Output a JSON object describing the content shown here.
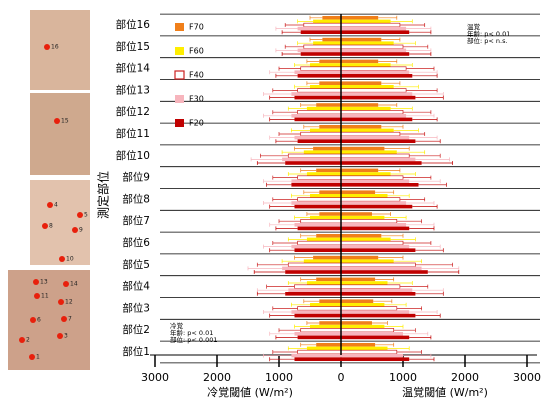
{
  "chart_data": {
    "type": "diverging-bar",
    "y_label": "測定部位",
    "x_label_left": "冷覚閾値 (W/m²)",
    "x_label_right": "温覚閾値 (W/m²)",
    "categories": [
      "部位1",
      "部位2",
      "部位3",
      "部位4",
      "部位5",
      "部位6",
      "部位7",
      "部位8",
      "部位9",
      "部位10",
      "部位11",
      "部位12",
      "部位13",
      "部位14",
      "部位15",
      "部位16"
    ],
    "series": [
      {
        "name": "F70",
        "color": "#f07f1a",
        "hollow": false,
        "values": [
          550,
          500,
          520,
          550,
          600,
          650,
          500,
          550,
          600,
          700,
          650,
          600,
          650,
          600,
          650,
          600
        ],
        "warm_err": [
          300,
          250,
          300,
          300,
          400,
          350,
          300,
          300,
          350,
          400,
          350,
          300,
          300,
          300,
          300,
          300
        ],
        "cold": [
          -400,
          -350,
          -350,
          -400,
          -450,
          -400,
          -350,
          -350,
          -400,
          -450,
          -350,
          -400,
          -350,
          -350,
          -300,
          -300
        ],
        "cold_err": [
          250,
          200,
          250,
          250,
          300,
          250,
          200,
          250,
          250,
          300,
          250,
          250,
          200,
          200,
          200,
          200
        ]
      },
      {
        "name": "F60",
        "color": "#ffee00",
        "hollow": false,
        "values": [
          750,
          700,
          700,
          750,
          850,
          800,
          700,
          750,
          800,
          900,
          850,
          800,
          850,
          800,
          850,
          800
        ],
        "warm_err": [
          350,
          300,
          350,
          400,
          450,
          400,
          350,
          350,
          400,
          450,
          400,
          350,
          400,
          350,
          350,
          350
        ],
        "cold": [
          -550,
          -500,
          -500,
          -550,
          -600,
          -550,
          -500,
          -500,
          -550,
          -600,
          -500,
          -550,
          -500,
          -500,
          -450,
          -450
        ],
        "cold_err": [
          300,
          250,
          300,
          300,
          350,
          300,
          250,
          300,
          300,
          350,
          300,
          300,
          250,
          250,
          250,
          250
        ]
      },
      {
        "name": "F40",
        "color": "#cc2222",
        "hollow": true,
        "values": [
          900,
          850,
          900,
          950,
          1200,
          1000,
          900,
          950,
          1000,
          1100,
          950,
          1000,
          1050,
          1050,
          1000,
          950
        ],
        "warm_err": [
          400,
          350,
          400,
          450,
          600,
          450,
          400,
          400,
          450,
          500,
          400,
          450,
          500,
          450,
          400,
          400
        ],
        "cold": [
          -700,
          -650,
          -700,
          -750,
          -850,
          -700,
          -650,
          -700,
          -700,
          -850,
          -650,
          -700,
          -700,
          -650,
          -600,
          -600
        ],
        "cold_err": [
          400,
          350,
          400,
          450,
          500,
          400,
          350,
          400,
          400,
          450,
          350,
          400,
          400,
          350,
          300,
          300
        ]
      },
      {
        "name": "F30",
        "color": "#f7b5bd",
        "hollow": false,
        "values": [
          1000,
          1000,
          1100,
          1150,
          1300,
          1100,
          1050,
          1050,
          1100,
          1200,
          1100,
          1050,
          1150,
          1100,
          1050,
          1050
        ],
        "warm_err": [
          450,
          400,
          450,
          500,
          600,
          500,
          450,
          450,
          500,
          550,
          450,
          450,
          500,
          450,
          400,
          400
        ],
        "cold": [
          -800,
          -750,
          -800,
          -850,
          -950,
          -800,
          -750,
          -800,
          -800,
          -950,
          -750,
          -800,
          -800,
          -750,
          -700,
          -700
        ],
        "cold_err": [
          450,
          400,
          450,
          500,
          550,
          450,
          400,
          450,
          450,
          500,
          400,
          450,
          450,
          400,
          350,
          350
        ]
      },
      {
        "name": "F20",
        "color": "#c00000",
        "hollow": false,
        "values": [
          1100,
          1100,
          1200,
          1200,
          1400,
          1200,
          1100,
          1150,
          1250,
          1300,
          1200,
          1150,
          1200,
          1150,
          1100,
          1100
        ],
        "warm_err": [
          400,
          350,
          400,
          450,
          500,
          450,
          400,
          400,
          450,
          500,
          400,
          400,
          450,
          400,
          350,
          350
        ],
        "cold": [
          -750,
          -700,
          -750,
          -900,
          -900,
          -750,
          -700,
          -750,
          -800,
          -900,
          -700,
          -750,
          -750,
          -700,
          -650,
          -650
        ],
        "cold_err": [
          400,
          350,
          400,
          450,
          500,
          400,
          350,
          400,
          400,
          450,
          350,
          400,
          400,
          350,
          300,
          300
        ]
      }
    ],
    "xlim": [
      -3000,
      3000
    ],
    "xticks": [
      {
        "value": -3000,
        "label": "3000"
      },
      {
        "value": -2000,
        "label": "2000"
      },
      {
        "value": -1000,
        "label": "1000"
      },
      0,
      1000,
      2000,
      3000
    ],
    "annotations": {
      "warm": [
        "温覚",
        "年齢: p< 0.01",
        "部位: p< n.s."
      ],
      "cold": [
        "冷覚",
        "年齢: p< 0.01",
        "部位: p< 0.001"
      ]
    }
  },
  "photo_points": [
    "16",
    "15",
    "4",
    "5",
    "8",
    "9",
    "10",
    "13",
    "14",
    "11",
    "12",
    "6",
    "7",
    "2",
    "3",
    "1"
  ]
}
